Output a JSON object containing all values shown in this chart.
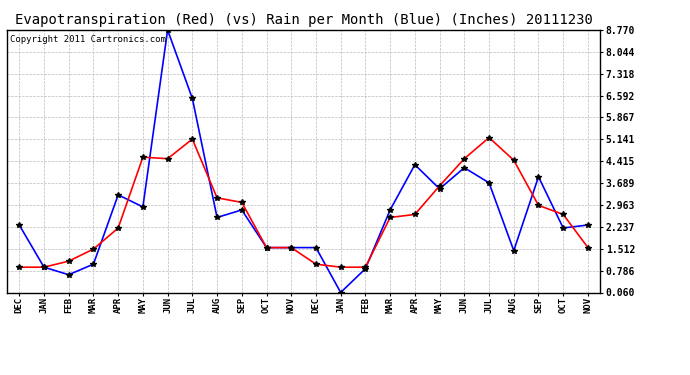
{
  "title": "Evapotranspiration (Red) (vs) Rain per Month (Blue) (Inches) 20111230",
  "copyright": "Copyright 2011 Cartronics.com",
  "x_labels": [
    "DEC",
    "JAN",
    "FEB",
    "MAR",
    "APR",
    "MAY",
    "JUN",
    "JUL",
    "AUG",
    "SEP",
    "OCT",
    "NOV",
    "DEC",
    "JAN",
    "FEB",
    "MAR",
    "APR",
    "MAY",
    "JUN",
    "JUL",
    "AUG",
    "SEP",
    "OCT",
    "NOV"
  ],
  "blue_data": [
    2.3,
    0.9,
    0.65,
    1.0,
    3.3,
    2.9,
    8.77,
    6.5,
    2.55,
    2.8,
    1.55,
    1.55,
    1.55,
    0.06,
    0.85,
    2.8,
    4.3,
    3.5,
    4.2,
    3.7,
    1.45,
    3.9,
    2.2,
    2.3
  ],
  "red_data": [
    0.9,
    0.9,
    1.1,
    1.5,
    2.2,
    4.55,
    4.5,
    5.15,
    3.2,
    3.05,
    1.55,
    1.55,
    1.0,
    0.9,
    0.9,
    2.55,
    2.65,
    3.6,
    4.5,
    5.2,
    4.45,
    2.95,
    2.65,
    1.55
  ],
  "y_ticks": [
    0.06,
    0.786,
    1.512,
    2.237,
    2.963,
    3.689,
    4.415,
    5.141,
    5.867,
    6.592,
    7.318,
    8.044,
    8.77
  ],
  "ylim": [
    0.06,
    8.77
  ],
  "blue_color": "#0000FF",
  "red_color": "#FF0000",
  "marker": "*",
  "marker_color": "#000000",
  "bg_color": "#FFFFFF",
  "grid_color": "#BBBBBB",
  "title_fontsize": 10,
  "copyright_fontsize": 6.5
}
